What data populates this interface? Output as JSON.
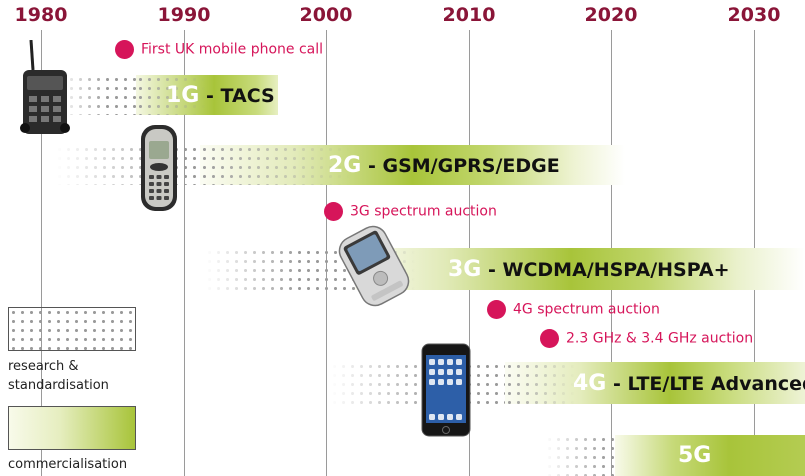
{
  "years": [
    "1980",
    "1990",
    "2000",
    "2010",
    "2020",
    "2030"
  ],
  "generations": [
    {
      "num": "1G",
      "name": "- TACS"
    },
    {
      "num": "2G",
      "name": "- GSM/GPRS/EDGE"
    },
    {
      "num": "3G",
      "name": "- WCDMA/HSPA/HSPA+"
    },
    {
      "num": "4G",
      "name": "- LTE/LTE Advanced"
    },
    {
      "num": "5G",
      "name": ""
    }
  ],
  "events": [
    {
      "label": "First UK mobile phone call"
    },
    {
      "label": "3G spectrum auction"
    },
    {
      "label": "4G spectrum auction"
    },
    {
      "label": "2.3 GHz & 3.4 GHz auction"
    }
  ],
  "legend": {
    "research": "research & standardisation",
    "commercial": "commercialisation"
  },
  "colors": {
    "year": "#8a1538",
    "event": "#d6155a",
    "band_light": "#f6f8e6",
    "band_dark": "#a8c43a"
  },
  "phones": [
    "brick-phone-icon",
    "nokia-phone-icon",
    "smartphone-3g-icon",
    "iphone-icon"
  ]
}
